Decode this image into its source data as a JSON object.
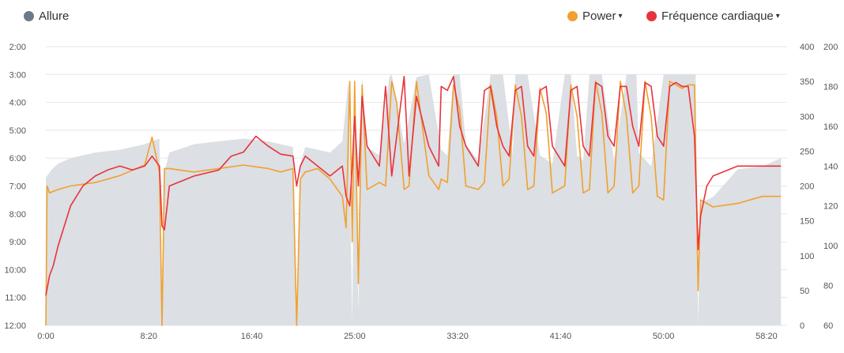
{
  "legend": {
    "pace": {
      "label": "Allure",
      "color": "#6b7a8a"
    },
    "power": {
      "label": "Power",
      "color": "#f0a030",
      "caret": "▾"
    },
    "hr": {
      "label": "Fréquence cardiaque",
      "color": "#e8333c",
      "caret": "▾"
    }
  },
  "chart_data": {
    "type": "line",
    "grid": true,
    "x_axis": {
      "unit": "minutes",
      "range": [
        0,
        60
      ],
      "tick_values": [
        0,
        8.333,
        16.667,
        25,
        33.333,
        41.667,
        50,
        58.333
      ],
      "tick_labels": [
        "0:00",
        "8:20",
        "16:40",
        "25:00",
        "33:20",
        "41:40",
        "50:00",
        "58:20"
      ]
    },
    "y_pace_axis": {
      "position": "left",
      "range_min_per_km": [
        2,
        12
      ],
      "reversed": true,
      "tick_values": [
        2,
        3,
        4,
        5,
        6,
        7,
        8,
        9,
        10,
        11,
        12
      ],
      "tick_labels": [
        "2:00",
        "3:00",
        "4:00",
        "5:00",
        "6:00",
        "7:00",
        "8:00",
        "9:00",
        "10:00",
        "11:00",
        "12:00"
      ]
    },
    "y_power_axis": {
      "position": "right-inner",
      "range": [
        0,
        400
      ],
      "tick_values": [
        0,
        50,
        100,
        150,
        200,
        250,
        300,
        350,
        400
      ],
      "tick_labels": [
        "0",
        "50",
        "100",
        "150",
        "200",
        "250",
        "300",
        "350",
        "400"
      ]
    },
    "y_hr_axis": {
      "position": "right-outer",
      "range": [
        60,
        200
      ],
      "tick_values": [
        60,
        80,
        100,
        120,
        140,
        160,
        180,
        200
      ],
      "tick_labels": [
        "60",
        "80",
        "100",
        "120",
        "140",
        "160",
        "180",
        "200"
      ]
    },
    "series": [
      {
        "key": "pace",
        "axis": "pace",
        "style": "area",
        "color": "#dcdfe3",
        "x": [
          0,
          0.5,
          1,
          2,
          4,
          6,
          8,
          9.2,
          9.4,
          9.6,
          10,
          12,
          14,
          16,
          18,
          19,
          20,
          20.3,
          20.6,
          21,
          22,
          23,
          24,
          24.5,
          24.8,
          25,
          25.3,
          25.6,
          26,
          27,
          27.8,
          28,
          29,
          30,
          31,
          32,
          32.5,
          33,
          33.5,
          34,
          35,
          36,
          37,
          37.8,
          38,
          39,
          40,
          41,
          42,
          42.5,
          43,
          43.5,
          44,
          45,
          46,
          47,
          47.8,
          48,
          49,
          50,
          50.5,
          51,
          52,
          52.6,
          52.8,
          53,
          54,
          56,
          58,
          59.5
        ],
        "y": [
          6.7,
          6.4,
          6.2,
          6.0,
          5.8,
          5.7,
          5.5,
          5.3,
          11.5,
          6.5,
          5.8,
          5.5,
          5.4,
          5.3,
          5.4,
          5.5,
          5.6,
          11.8,
          6.2,
          5.6,
          5.7,
          5.8,
          5.4,
          3.2,
          11.9,
          3.0,
          11.5,
          3.1,
          5.6,
          5.9,
          3.1,
          3.0,
          5.5,
          3.1,
          3.0,
          5.7,
          5.9,
          3.0,
          3.0,
          5.5,
          6.1,
          3.0,
          3.0,
          5.9,
          3.0,
          3.0,
          5.9,
          6.2,
          3.0,
          3.0,
          5.9,
          6.1,
          3.0,
          3.0,
          6.1,
          3.0,
          3.0,
          5.8,
          6.3,
          3.0,
          3.0,
          3.0,
          3.0,
          3.0,
          12.0,
          7.6,
          7.4,
          6.4,
          6.3,
          6.0
        ]
      },
      {
        "key": "power",
        "axis": "power",
        "style": "line",
        "color": "#f0a030",
        "x": [
          0,
          0.1,
          0.3,
          1,
          2,
          4,
          6,
          8,
          8.6,
          9.2,
          9.4,
          9.6,
          10,
          12,
          14,
          16,
          18,
          19,
          20,
          20.3,
          20.6,
          21,
          22,
          23,
          24,
          24.3,
          24.6,
          24.8,
          25,
          25.3,
          25.6,
          26,
          27,
          27.5,
          28,
          28.4,
          29,
          29.4,
          30,
          31,
          31.8,
          32,
          32.5,
          33,
          33.5,
          34,
          35,
          35.5,
          36,
          36.5,
          37,
          37.5,
          38,
          38.5,
          39,
          39.5,
          40,
          40.5,
          41,
          42,
          42.5,
          43,
          43.5,
          44,
          44.5,
          45,
          45.5,
          46,
          46.5,
          47,
          47.5,
          48,
          48.5,
          49,
          49.5,
          50,
          50.5,
          51,
          51.5,
          52,
          52.5,
          52.8,
          53,
          53.5,
          54,
          56,
          58,
          59.5
        ],
        "y": [
          0,
          200,
          190,
          195,
          200,
          205,
          215,
          230,
          270,
          220,
          0,
          225,
          225,
          220,
          225,
          230,
          225,
          220,
          225,
          0,
          210,
          220,
          225,
          210,
          185,
          140,
          350,
          120,
          350,
          60,
          345,
          195,
          205,
          200,
          350,
          320,
          195,
          200,
          350,
          215,
          195,
          210,
          205,
          345,
          310,
          200,
          195,
          205,
          345,
          300,
          200,
          210,
          345,
          300,
          195,
          200,
          340,
          305,
          190,
          200,
          345,
          300,
          190,
          195,
          350,
          305,
          190,
          200,
          350,
          300,
          190,
          200,
          350,
          300,
          185,
          180,
          350,
          345,
          340,
          345,
          345,
          50,
          180,
          175,
          170,
          175,
          185,
          185
        ]
      },
      {
        "key": "hr",
        "axis": "hr",
        "style": "line",
        "color": "#e8333c",
        "x": [
          0,
          0.3,
          0.6,
          1,
          2,
          3,
          4,
          5,
          6,
          7,
          8,
          8.6,
          9.2,
          9.4,
          9.6,
          10,
          12,
          14,
          15,
          16,
          17,
          18,
          19,
          20,
          20.3,
          20.6,
          21,
          22,
          23,
          24,
          24.3,
          24.6,
          24.8,
          25,
          25.3,
          25.6,
          26,
          27,
          27.5,
          28,
          28.4,
          29,
          29.4,
          30,
          31,
          31.8,
          32,
          32.5,
          33,
          33.5,
          34,
          35,
          35.5,
          36,
          36.5,
          37,
          37.5,
          38,
          38.5,
          39,
          39.5,
          40,
          40.5,
          41,
          42,
          42.5,
          43,
          43.5,
          44,
          44.5,
          45,
          45.5,
          46,
          46.5,
          47,
          47.5,
          48,
          48.5,
          49,
          49.5,
          50,
          50.5,
          51,
          51.5,
          52,
          52.5,
          52.8,
          53,
          53.5,
          54,
          56,
          58,
          59.5
        ],
        "y": [
          75,
          85,
          90,
          100,
          120,
          130,
          135,
          138,
          140,
          138,
          140,
          145,
          140,
          110,
          108,
          130,
          135,
          138,
          145,
          147,
          155,
          150,
          146,
          145,
          130,
          140,
          145,
          140,
          135,
          140,
          125,
          120,
          140,
          165,
          130,
          175,
          150,
          140,
          180,
          135,
          155,
          185,
          135,
          175,
          150,
          140,
          180,
          178,
          185,
          160,
          150,
          140,
          178,
          180,
          160,
          150,
          145,
          178,
          180,
          150,
          145,
          178,
          180,
          150,
          140,
          178,
          180,
          150,
          145,
          182,
          180,
          155,
          150,
          180,
          180,
          160,
          150,
          182,
          180,
          155,
          150,
          180,
          182,
          180,
          180,
          155,
          98,
          115,
          130,
          135,
          140,
          140,
          140
        ]
      }
    ]
  }
}
